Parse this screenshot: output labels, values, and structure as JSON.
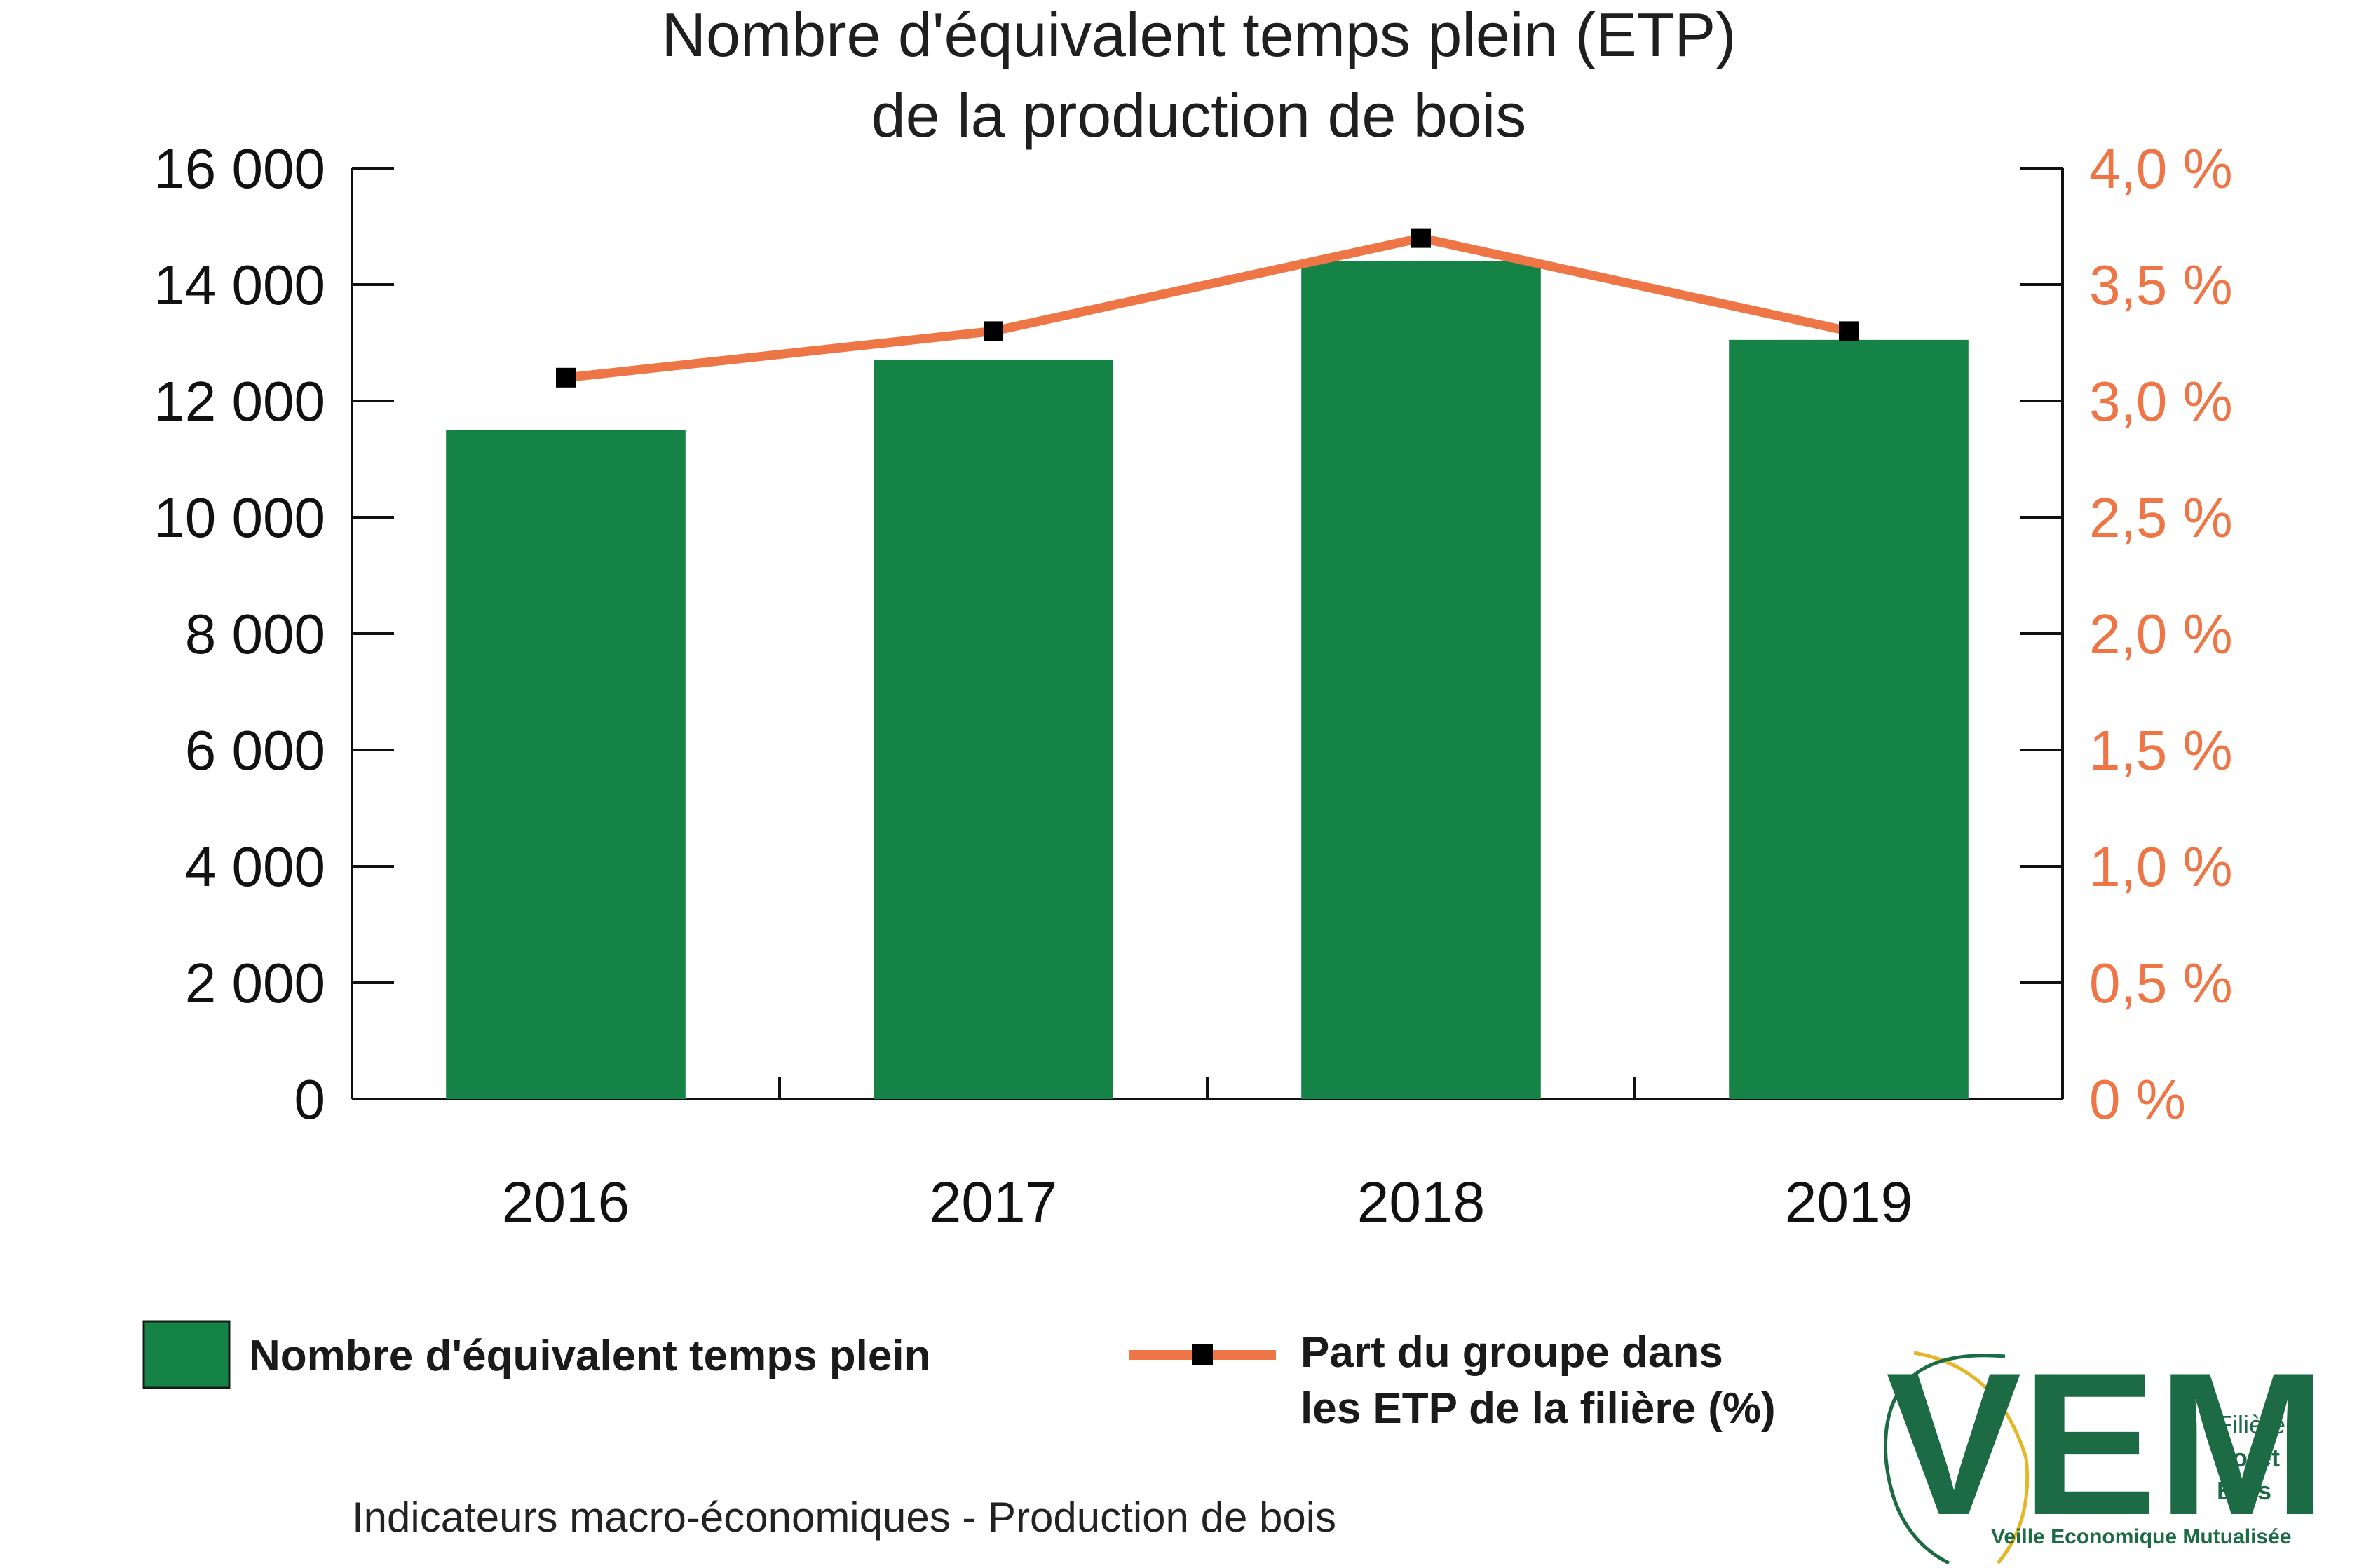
{
  "colors": {
    "bar": "#158246",
    "line": "#ee7646",
    "marker": "#000000",
    "axis": "#111111",
    "right_ticks": "#ee7646",
    "logo_green": "#1d6b45",
    "logo_yellow": "#e4b729"
  },
  "chart_data": {
    "type": "bar",
    "title": [
      "Nombre d'équivalent temps plein (ETP)",
      "de la production de bois"
    ],
    "categories": [
      "2016",
      "2017",
      "2018",
      "2019"
    ],
    "series": [
      {
        "name": "Nombre d'équivalent temps plein",
        "kind": "bar",
        "axis": "left",
        "values": [
          11500,
          12700,
          14400,
          13050
        ]
      },
      {
        "name": "Part du groupe dans les ETP de la filière  (%)",
        "kind": "line",
        "axis": "right",
        "values": [
          3.1,
          3.3,
          3.7,
          3.3
        ]
      }
    ],
    "y_left": {
      "min": 0,
      "max": 16000,
      "ticks": [
        0,
        2000,
        4000,
        6000,
        8000,
        10000,
        12000,
        14000,
        16000
      ],
      "tick_labels": [
        "0",
        "2 000",
        "4 000",
        "6 000",
        "8 000",
        "10 000",
        "12 000",
        "14 000",
        "16 000"
      ]
    },
    "y_right": {
      "min": 0,
      "max": 4,
      "ticks": [
        0,
        0.5,
        1,
        1.5,
        2,
        2.5,
        3,
        3.5,
        4
      ],
      "tick_labels": [
        "0 %",
        "0,5 %",
        "1,0 %",
        "1,5 %",
        "2,0 %",
        "2,5 %",
        "3,0 %",
        "3,5 %",
        "4,0 %"
      ]
    },
    "grid": false,
    "legend_position": "bottom",
    "legend": [
      {
        "label": "Nombre d'équivalent temps plein"
      },
      {
        "label": [
          "Part du groupe dans",
          "les ETP de la filière  (%)"
        ]
      }
    ]
  },
  "caption": "Indicateurs macro-économiques - Production de bois",
  "logo": {
    "letters": "VEM",
    "side_lines": [
      "Filière",
      "Forêt",
      "Bois"
    ],
    "tagline": "Veille Economique Mutualisée"
  }
}
